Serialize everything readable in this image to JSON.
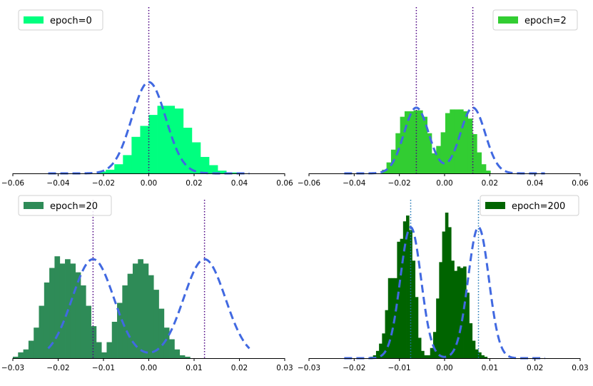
{
  "chart_data": [
    {
      "type": "bar",
      "legend": {
        "label": "epoch=0",
        "placement": "top-left"
      },
      "bar_color": "#00ff7f",
      "xlim": [
        -0.06,
        0.06
      ],
      "x_ticks": [
        -0.06,
        -0.04,
        -0.02,
        0.0,
        0.02,
        0.04,
        0.06
      ],
      "x_tick_labels": [
        "−0.06",
        "−0.04",
        "−0.02",
        "0.00",
        "0.02",
        "0.04",
        "0.06"
      ],
      "ylim": [
        0,
        1.0
      ],
      "bars": {
        "bin_start": -0.0228,
        "bin_width": 0.0038,
        "heights": [
          0.02,
          0.04,
          0.1,
          0.2,
          0.4,
          0.52,
          0.64,
          0.74,
          0.74,
          0.71,
          0.5,
          0.34,
          0.18,
          0.09,
          0.03,
          0.01,
          0.01
        ]
      },
      "gaussians": [
        {
          "mean": 0.0,
          "sd": 0.0075,
          "peak": 1.0
        }
      ],
      "gaussian_style": {
        "color": "#4169e1",
        "dash": "dashed"
      },
      "vlines": [
        0.0
      ],
      "vline_color": "#4b0082"
    },
    {
      "type": "bar",
      "legend": {
        "label": "epoch=2",
        "placement": "top-right"
      },
      "bar_color": "#32cd32",
      "xlim": [
        -0.06,
        0.06
      ],
      "x_ticks": [
        -0.06,
        -0.04,
        -0.02,
        0.0,
        0.02,
        0.04,
        0.06
      ],
      "x_tick_labels": [
        "−0.06",
        "−0.04",
        "−0.02",
        "0.00",
        "0.02",
        "0.04",
        "0.06"
      ],
      "ylim": [
        0,
        1.0
      ],
      "bars": {
        "bin_start": -0.0277,
        "bin_width": 0.002,
        "heights": [
          0.04,
          0.12,
          0.26,
          0.44,
          0.62,
          0.68,
          0.68,
          0.69,
          0.69,
          0.62,
          0.44,
          0.22,
          0.3,
          0.45,
          0.66,
          0.7,
          0.7,
          0.7,
          0.68,
          0.6,
          0.43,
          0.23,
          0.1,
          0.03
        ]
      },
      "gaussians": [
        {
          "mean": -0.0125,
          "sd": 0.0055,
          "peak": 0.72
        },
        {
          "mean": 0.0125,
          "sd": 0.0055,
          "peak": 0.72
        }
      ],
      "gaussian_style": {
        "color": "#4169e1",
        "dash": "dashed"
      },
      "vlines": [
        -0.0125,
        0.0125
      ],
      "vline_color": "#4b0082"
    },
    {
      "type": "bar",
      "legend": {
        "label": "epoch=20",
        "placement": "top-left"
      },
      "bar_color": "#2e8b57",
      "xlim": [
        -0.03,
        0.03
      ],
      "x_ticks": [
        -0.03,
        -0.02,
        -0.01,
        0.0,
        0.01,
        0.02,
        0.03
      ],
      "x_tick_labels": [
        "−0.03",
        "−0.02",
        "−0.01",
        "0.00",
        "0.01",
        "0.02",
        "0.03"
      ],
      "ylim": [
        0,
        1.0
      ],
      "bars": {
        "bin_start": -0.03,
        "bin_width": 0.00115,
        "heights": [
          0.01,
          0.04,
          0.06,
          0.12,
          0.21,
          0.36,
          0.52,
          0.62,
          0.7,
          0.65,
          0.68,
          0.65,
          0.59,
          0.5,
          0.36,
          0.22,
          0.11,
          0.04,
          0.11,
          0.25,
          0.38,
          0.5,
          0.58,
          0.65,
          0.68,
          0.65,
          0.57,
          0.47,
          0.34,
          0.21,
          0.13,
          0.06,
          0.02,
          0.01
        ]
      },
      "gaussians": [
        {
          "mean": -0.0123,
          "sd": 0.0046,
          "peak": 0.68
        },
        {
          "mean": 0.0123,
          "sd": 0.0046,
          "peak": 0.68
        }
      ],
      "gaussian_style": {
        "color": "#4169e1",
        "dash": "dashed"
      },
      "vlines": [
        -0.0123,
        0.0123
      ],
      "vline_color": "#4b0082"
    },
    {
      "type": "bar",
      "legend": {
        "label": "epoch=200",
        "placement": "top-right"
      },
      "bar_color": "#006400",
      "xlim": [
        -0.03,
        0.03
      ],
      "x_ticks": [
        -0.03,
        -0.02,
        -0.01,
        0.0,
        0.01,
        0.02,
        0.03
      ],
      "x_tick_labels": [
        "−0.03",
        "−0.02",
        "−0.01",
        "0.00",
        "0.01",
        "0.02",
        "0.03"
      ],
      "ylim": [
        0,
        1.0
      ],
      "bars": {
        "bin_start": -0.0165,
        "bin_width": 0.000665,
        "heights": [
          0.01,
          0.02,
          0.05,
          0.1,
          0.17,
          0.33,
          0.55,
          0.55,
          0.55,
          0.8,
          0.82,
          0.94,
          0.98,
          0.88,
          0.67,
          0.42,
          0.14,
          0.05,
          0.02,
          0.02,
          0.07,
          0.18,
          0.41,
          0.66,
          0.87,
          1.0,
          0.9,
          0.67,
          0.6,
          0.63,
          0.62,
          0.63,
          0.45,
          0.24,
          0.12,
          0.06,
          0.04,
          0.02,
          0.01
        ]
      },
      "gaussians": [
        {
          "mean": -0.0075,
          "sd": 0.0023,
          "peak": 0.9
        },
        {
          "mean": 0.0075,
          "sd": 0.0023,
          "peak": 0.9
        }
      ],
      "gaussian_style": {
        "color": "#4169e1",
        "dash": "dashed"
      },
      "vlines": [
        -0.0075,
        0.0075
      ],
      "vline_color": "#1f77b4"
    }
  ]
}
